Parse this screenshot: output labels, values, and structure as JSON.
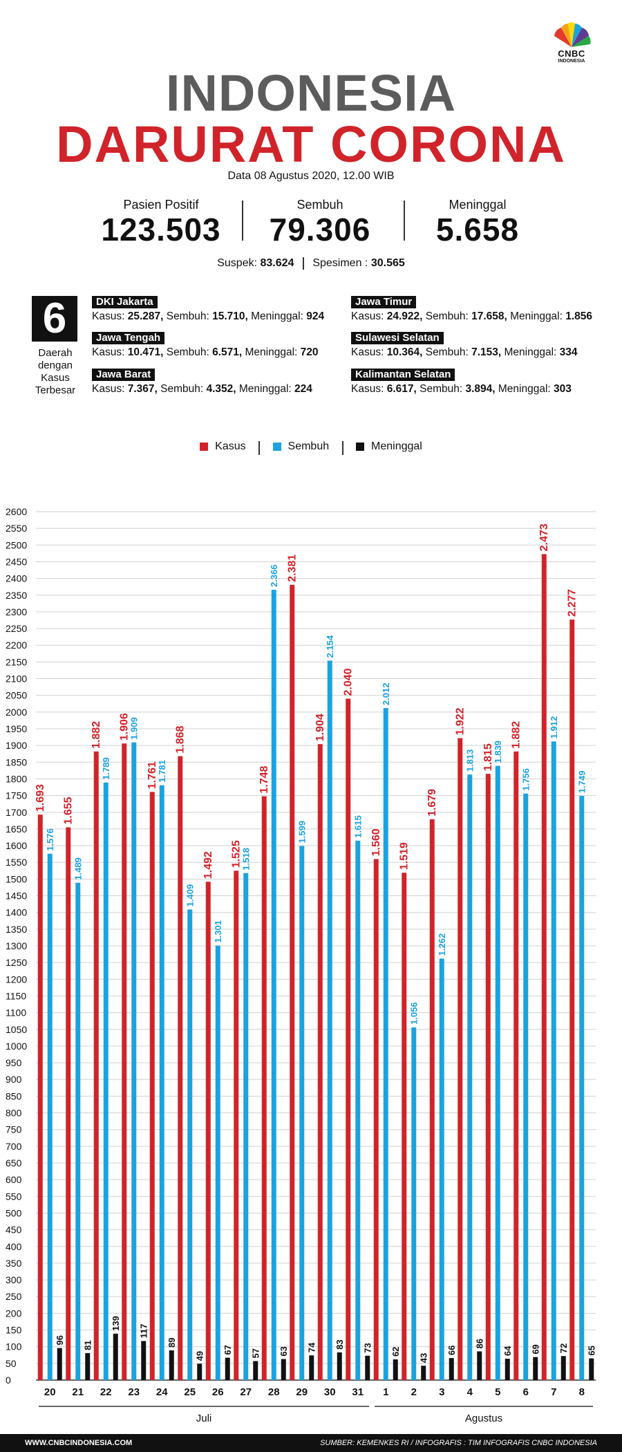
{
  "logo": {
    "text": "CNBC",
    "sub": "INDONESIA"
  },
  "title": {
    "line1": "INDONESIA",
    "line2": "DARURAT CORONA"
  },
  "date": "Data 08 Agustus 2020, 12.00 WIB",
  "stats": [
    {
      "label": "Pasien Positif",
      "value": "123.503"
    },
    {
      "label": "Sembuh",
      "value": "79.306"
    },
    {
      "label": "Meninggal",
      "value": "5.658"
    }
  ],
  "suspek": {
    "label": "Suspek:",
    "value": "83.624",
    "spes_label": "Spesimen :",
    "spes_value": "30.565"
  },
  "regions_block": {
    "number": "6",
    "label1": "Daerah",
    "label2": "dengan",
    "label3": "Kasus",
    "label4": "Terbesar"
  },
  "regions": [
    {
      "name": "DKI Jakarta",
      "kasus": "25.287,",
      "sembuh": "15.710,",
      "meninggal": "924"
    },
    {
      "name": "Jawa Tengah",
      "kasus": "10.471,",
      "sembuh": "6.571,",
      "meninggal": "720"
    },
    {
      "name": "Jawa Barat",
      "kasus": "7.367,",
      "sembuh": "4.352,",
      "meninggal": "224"
    },
    {
      "name": "Jawa Timur",
      "kasus": "24.922,",
      "sembuh": "17.658,",
      "meninggal": "1.856"
    },
    {
      "name": "Sulawesi Selatan",
      "kasus": "10.364,",
      "sembuh": "7.153,",
      "meninggal": "334"
    },
    {
      "name": "Kalimantan Selatan",
      "kasus": "6.617,",
      "sembuh": "3.894,",
      "meninggal": "303"
    }
  ],
  "region_labels": {
    "kasus": "Kasus:",
    "sembuh": "Sembuh:",
    "meninggal": "Meninggal:"
  },
  "legend": {
    "kasus": "Kasus",
    "sembuh": "Sembuh",
    "meninggal": "Meninggal"
  },
  "colors": {
    "kasus": "#d1232a",
    "sembuh": "#1aa3de",
    "meninggal": "#111111"
  },
  "chart_data": {
    "type": "bar",
    "categories": [
      "20",
      "21",
      "22",
      "23",
      "24",
      "25",
      "26",
      "27",
      "28",
      "29",
      "30",
      "31",
      "1",
      "2",
      "3",
      "4",
      "5",
      "6",
      "7",
      "8"
    ],
    "month_groups": [
      {
        "label": "Juli",
        "from": 0,
        "to": 11
      },
      {
        "label": "Agustus",
        "from": 12,
        "to": 19
      }
    ],
    "series": [
      {
        "name": "Kasus",
        "values": [
          1693,
          1655,
          1882,
          1906,
          1761,
          1868,
          1492,
          1525,
          1748,
          2381,
          1904,
          2040,
          1560,
          1519,
          1679,
          1922,
          1815,
          1882,
          2473,
          2277
        ],
        "labels": [
          "1.693",
          "1.655",
          "1.882",
          "1.906",
          "1.761",
          "1.868",
          "1.492",
          "1.525",
          "1.748",
          "2.381",
          "1.904",
          "2.040",
          "1.560",
          "1.519",
          "1.679",
          "1.922",
          "1.815",
          "1.882",
          "2.473",
          "2.277"
        ]
      },
      {
        "name": "Sembuh",
        "values": [
          1576,
          1489,
          1789,
          1909,
          1781,
          1409,
          1301,
          1518,
          2366,
          1599,
          2154,
          1615,
          2012,
          1056,
          1262,
          1813,
          1839,
          1756,
          1912,
          1749
        ],
        "labels": [
          "1.576",
          "1.489",
          "1.789",
          "1.909",
          "1.781",
          "1.409",
          "1.301",
          "1.518",
          "2.366",
          "1.599",
          "2.154",
          "1.615",
          "2.012",
          "1.056",
          "1.262",
          "1.813",
          "1.839",
          "1.756",
          "1.912",
          "1.749"
        ]
      },
      {
        "name": "Meninggal",
        "values": [
          96,
          81,
          139,
          117,
          89,
          49,
          67,
          57,
          63,
          74,
          83,
          73,
          62,
          43,
          66,
          86,
          64,
          69,
          72,
          65
        ],
        "labels": [
          "96",
          "81",
          "139",
          "117",
          "89",
          "49",
          "67",
          "57",
          "63",
          "74",
          "83",
          "73",
          "62",
          "43",
          "66",
          "86",
          "64",
          "69",
          "72",
          "65"
        ]
      }
    ],
    "ylim": [
      0,
      2600
    ],
    "yticks": [
      "0",
      "50",
      "100",
      "150",
      "200",
      "250",
      "300",
      "350",
      "400",
      "450",
      "500",
      "550",
      "600",
      "650",
      "700",
      "750",
      "800",
      "850",
      "900",
      "950",
      "1000",
      "1050",
      "1100",
      "1150",
      "1200",
      "1250",
      "1300",
      "1350",
      "1400",
      "1450",
      "1500",
      "1550",
      "1600",
      "1650",
      "1700",
      "1750",
      "1800",
      "1850",
      "1900",
      "1950",
      "2000",
      "2050",
      "2100",
      "2150",
      "2200",
      "2250",
      "2300",
      "2350",
      "2400",
      "2450",
      "2500",
      "2550",
      "2600"
    ]
  },
  "footer": {
    "left": "WWW.CNBCINDONESIA.COM",
    "right": "SUMBER: KEMENKES RI / INFOGRAFIS : TIM INFOGRAFIS CNBC INDONESIA"
  }
}
